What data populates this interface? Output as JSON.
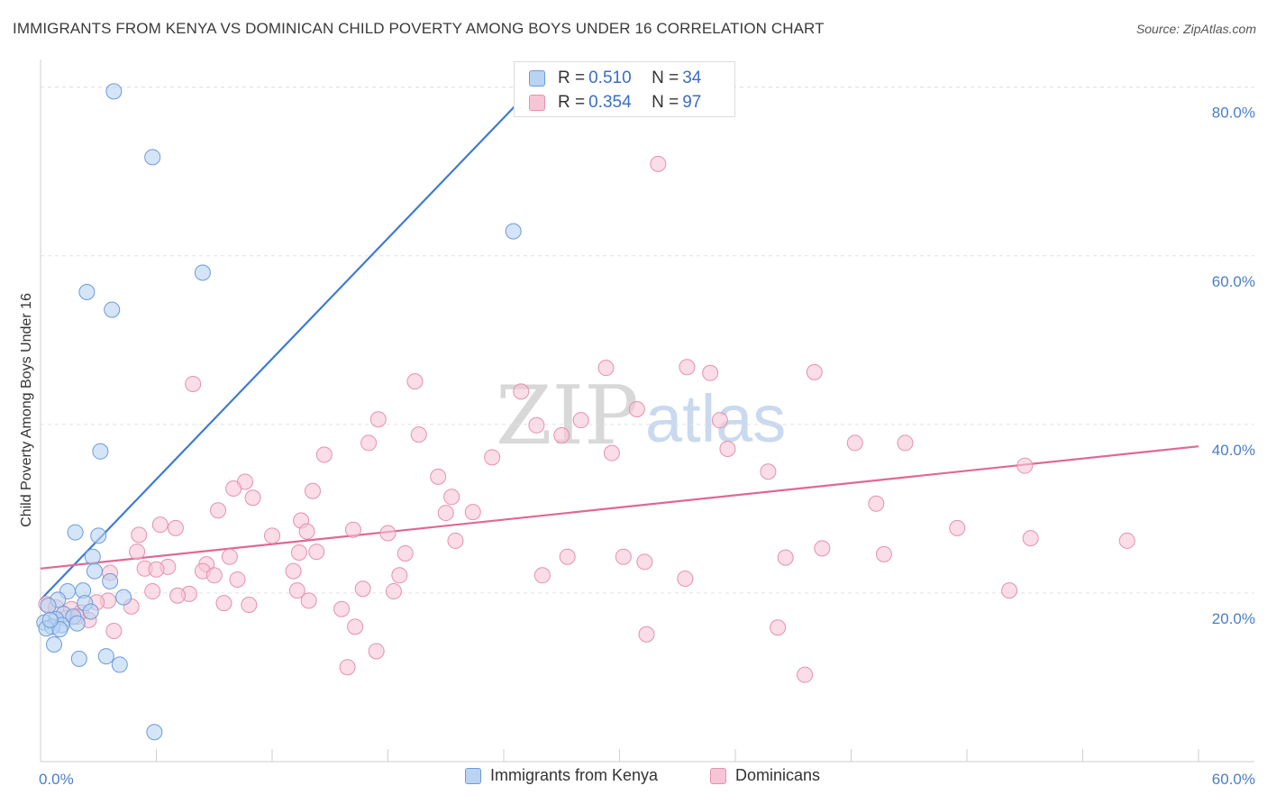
{
  "title": "IMMIGRANTS FROM KENYA VS DOMINICAN CHILD POVERTY AMONG BOYS UNDER 16 CORRELATION CHART",
  "source": "Source: ZipAtlas.com",
  "watermark": {
    "zip": "ZIP",
    "atlas": "atlas"
  },
  "colors": {
    "kenya_fill": "#b9d3f3",
    "kenya_stroke": "#6c9bd8",
    "kenya_line": "#3d7ad6",
    "dominican_fill": "#f6c6d6",
    "dominican_stroke": "#e591ae",
    "dominican_line": "#e06894",
    "grid": "#e2e2e2",
    "tick_text": "#4a7ec8"
  },
  "legend_top": [
    {
      "r_label": "R = ",
      "r_value": "0.510",
      "n_label": "N = ",
      "n_value": "34"
    },
    {
      "r_label": "R = ",
      "r_value": "0.354",
      "n_label": "N = ",
      "n_value": "97"
    }
  ],
  "chart_data": {
    "type": "scatter",
    "title": "IMMIGRANTS FROM KENYA VS DOMINICAN CHILD POVERTY AMONG BOYS UNDER 16 CORRELATION CHART",
    "xlabel": "",
    "ylabel": "Child Poverty Among Boys Under 16",
    "xlim": [
      0,
      60
    ],
    "ylim": [
      0,
      82
    ],
    "x_ticks": [
      {
        "value": 0,
        "label": "0.0%"
      },
      {
        "value": 60,
        "label": "60.0%"
      }
    ],
    "y_ticks": [
      {
        "value": 20,
        "label": "20.0%"
      },
      {
        "value": 40,
        "label": "40.0%"
      },
      {
        "value": 60,
        "label": "60.0%"
      },
      {
        "value": 80,
        "label": "80.0%"
      }
    ],
    "legend_position": "bottom",
    "series": [
      {
        "name": "Immigrants from Kenya",
        "R": 0.51,
        "N": 34,
        "trend": {
          "x": [
            0,
            24.6
          ],
          "y": [
            19.2,
            77.8
          ]
        },
        "points": [
          [
            3.8,
            79.5
          ],
          [
            5.8,
            71.7
          ],
          [
            8.4,
            58.0
          ],
          [
            2.4,
            55.7
          ],
          [
            3.7,
            53.6
          ],
          [
            24.5,
            62.9
          ],
          [
            3.1,
            36.8
          ],
          [
            1.8,
            27.2
          ],
          [
            3.0,
            26.8
          ],
          [
            2.7,
            24.3
          ],
          [
            2.8,
            22.6
          ],
          [
            3.6,
            21.4
          ],
          [
            2.2,
            20.3
          ],
          [
            1.4,
            20.2
          ],
          [
            4.3,
            19.5
          ],
          [
            0.9,
            19.2
          ],
          [
            2.3,
            18.8
          ],
          [
            0.4,
            18.5
          ],
          [
            2.6,
            17.8
          ],
          [
            1.2,
            17.5
          ],
          [
            1.7,
            17.2
          ],
          [
            0.8,
            16.9
          ],
          [
            1.9,
            16.4
          ],
          [
            0.2,
            16.5
          ],
          [
            1.1,
            16.2
          ],
          [
            0.6,
            16.0
          ],
          [
            0.3,
            15.8
          ],
          [
            1.0,
            15.7
          ],
          [
            0.7,
            13.9
          ],
          [
            2.0,
            12.2
          ],
          [
            3.4,
            12.5
          ],
          [
            4.1,
            11.5
          ],
          [
            5.9,
            3.5
          ],
          [
            0.5,
            16.8
          ]
        ]
      },
      {
        "name": "Dominicans",
        "R": 0.354,
        "N": 97,
        "trend": {
          "x": [
            0,
            60
          ],
          "y": [
            22.9,
            37.4
          ]
        },
        "points": [
          [
            32.0,
            70.9
          ],
          [
            29.3,
            46.7
          ],
          [
            33.5,
            46.8
          ],
          [
            34.7,
            46.1
          ],
          [
            40.1,
            46.2
          ],
          [
            19.4,
            45.1
          ],
          [
            7.9,
            44.8
          ],
          [
            24.9,
            43.9
          ],
          [
            30.9,
            41.8
          ],
          [
            17.5,
            40.6
          ],
          [
            28.0,
            40.5
          ],
          [
            35.2,
            40.5
          ],
          [
            25.7,
            39.9
          ],
          [
            19.6,
            38.8
          ],
          [
            27.0,
            38.7
          ],
          [
            17.0,
            37.8
          ],
          [
            42.2,
            37.8
          ],
          [
            44.8,
            37.8
          ],
          [
            35.6,
            37.1
          ],
          [
            29.6,
            36.6
          ],
          [
            14.7,
            36.4
          ],
          [
            23.4,
            36.1
          ],
          [
            51.0,
            35.1
          ],
          [
            37.7,
            34.4
          ],
          [
            20.6,
            33.8
          ],
          [
            10.6,
            33.2
          ],
          [
            10.0,
            32.4
          ],
          [
            14.1,
            32.1
          ],
          [
            21.3,
            31.4
          ],
          [
            11.0,
            31.3
          ],
          [
            43.3,
            30.6
          ],
          [
            9.2,
            29.8
          ],
          [
            22.4,
            29.6
          ],
          [
            21.0,
            29.5
          ],
          [
            6.2,
            28.1
          ],
          [
            13.5,
            28.6
          ],
          [
            7.0,
            27.7
          ],
          [
            16.2,
            27.5
          ],
          [
            5.1,
            26.9
          ],
          [
            12.0,
            26.8
          ],
          [
            18.0,
            27.1
          ],
          [
            13.8,
            27.3
          ],
          [
            47.5,
            27.7
          ],
          [
            21.5,
            26.2
          ],
          [
            51.3,
            26.5
          ],
          [
            56.3,
            26.2
          ],
          [
            40.5,
            25.3
          ],
          [
            5.0,
            24.9
          ],
          [
            13.4,
            24.8
          ],
          [
            14.3,
            24.9
          ],
          [
            18.9,
            24.7
          ],
          [
            9.8,
            24.3
          ],
          [
            27.3,
            24.3
          ],
          [
            30.2,
            24.3
          ],
          [
            38.6,
            24.2
          ],
          [
            43.7,
            24.6
          ],
          [
            31.3,
            23.7
          ],
          [
            8.6,
            23.4
          ],
          [
            5.4,
            22.9
          ],
          [
            6.6,
            23.1
          ],
          [
            3.6,
            22.4
          ],
          [
            13.1,
            22.6
          ],
          [
            8.4,
            22.6
          ],
          [
            9.0,
            22.1
          ],
          [
            26.0,
            22.1
          ],
          [
            18.6,
            22.1
          ],
          [
            10.2,
            21.6
          ],
          [
            33.4,
            21.7
          ],
          [
            5.8,
            20.2
          ],
          [
            7.7,
            19.9
          ],
          [
            18.3,
            20.2
          ],
          [
            13.3,
            20.3
          ],
          [
            7.1,
            19.7
          ],
          [
            16.7,
            20.5
          ],
          [
            50.2,
            20.3
          ],
          [
            13.9,
            19.1
          ],
          [
            3.5,
            19.1
          ],
          [
            9.5,
            18.8
          ],
          [
            10.8,
            18.6
          ],
          [
            4.7,
            18.4
          ],
          [
            1.6,
            18.1
          ],
          [
            15.6,
            18.1
          ],
          [
            2.1,
            17.7
          ],
          [
            1.3,
            17.0
          ],
          [
            0.3,
            18.7
          ],
          [
            2.5,
            16.8
          ],
          [
            3.8,
            15.5
          ],
          [
            16.3,
            16.0
          ],
          [
            38.2,
            15.9
          ],
          [
            31.4,
            15.1
          ],
          [
            17.4,
            13.1
          ],
          [
            15.9,
            11.2
          ],
          [
            39.6,
            10.3
          ],
          [
            0.8,
            18.3
          ],
          [
            1.9,
            17.2
          ],
          [
            2.9,
            18.9
          ],
          [
            6.0,
            22.8
          ]
        ]
      }
    ]
  }
}
